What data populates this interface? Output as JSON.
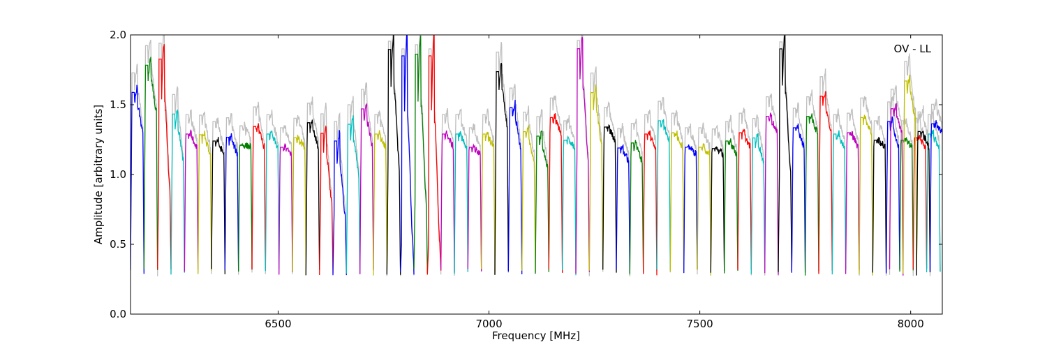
{
  "chart_data": {
    "type": "line",
    "title": "",
    "annotation": "OV - LL",
    "xlabel": "Frequency [MHz]",
    "ylabel": "Amplitude [arbitrary units]",
    "xlim": [
      6150,
      8075
    ],
    "ylim": [
      0.0,
      2.0
    ],
    "x_ticks": [
      6500,
      7000,
      7500,
      8000
    ],
    "x_tick_labels": [
      "6500",
      "7000",
      "7500",
      "8000"
    ],
    "y_ticks": [
      0.0,
      0.5,
      1.0,
      1.5,
      2.0
    ],
    "y_tick_labels": [
      "0.0",
      "0.5",
      "1.0",
      "1.5",
      "2.0"
    ],
    "grid": false,
    "legend": "none",
    "background_series_color": "#bfbfbf",
    "color_cycle": [
      "#0000ff",
      "#008000",
      "#ff0000",
      "#00bfbf",
      "#bf00bf",
      "#bfbf00",
      "#000000"
    ],
    "channel_width_mhz": 32,
    "channels": [
      {
        "start": 6150,
        "color": "#0000ff",
        "level": 1.3,
        "peak": 1.62
      },
      {
        "start": 6182,
        "color": "#008000",
        "level": 1.45,
        "peak": 1.82
      },
      {
        "start": 6214,
        "color": "#ff0000",
        "level": 0.9,
        "peak": 1.93
      },
      {
        "start": 6246,
        "color": "#00bfbf",
        "level": 1.1,
        "peak": 1.47
      },
      {
        "start": 6278,
        "color": "#bf00bf",
        "level": 1.2,
        "peak": 1.3
      },
      {
        "start": 6310,
        "color": "#bfbf00",
        "level": 1.15,
        "peak": 1.3
      },
      {
        "start": 6342,
        "color": "#000000",
        "level": 1.15,
        "peak": 1.25
      },
      {
        "start": 6374,
        "color": "#0000ff",
        "level": 1.15,
        "peak": 1.28
      },
      {
        "start": 6406,
        "color": "#008000",
        "level": 1.2,
        "peak": 1.21
      },
      {
        "start": 6438,
        "color": "#ff0000",
        "level": 1.2,
        "peak": 1.36
      },
      {
        "start": 6470,
        "color": "#00bfbf",
        "level": 1.2,
        "peak": 1.3
      },
      {
        "start": 6502,
        "color": "#bf00bf",
        "level": 1.15,
        "peak": 1.2
      },
      {
        "start": 6534,
        "color": "#bfbf00",
        "level": 1.2,
        "peak": 1.27
      },
      {
        "start": 6566,
        "color": "#000000",
        "level": 1.2,
        "peak": 1.39
      },
      {
        "start": 6598,
        "color": "#ff0000",
        "level": 0.8,
        "peak": 1.35
      },
      {
        "start": 6630,
        "color": "#0000ff",
        "level": 0.7,
        "peak": 1.3
      },
      {
        "start": 6662,
        "color": "#00bfbf",
        "level": 1.0,
        "peak": 1.4
      },
      {
        "start": 6694,
        "color": "#bf00bf",
        "level": 1.2,
        "peak": 1.5
      },
      {
        "start": 6726,
        "color": "#bfbf00",
        "level": 1.2,
        "peak": 1.3
      },
      {
        "start": 6758,
        "color": "#000000",
        "level": 1.05,
        "peak": 1.99
      },
      {
        "start": 6790,
        "color": "#0000ff",
        "level": 0.5,
        "peak": 2.0
      },
      {
        "start": 6822,
        "color": "#008000",
        "level": 0.8,
        "peak": 1.98
      },
      {
        "start": 6854,
        "color": "#ff0000",
        "level": 0.5,
        "peak": 2.0
      },
      {
        "start": 6886,
        "color": "#bf00bf",
        "level": 1.2,
        "peak": 1.3
      },
      {
        "start": 6918,
        "color": "#00bfbf",
        "level": 1.2,
        "peak": 1.3
      },
      {
        "start": 6950,
        "color": "#bf00bf",
        "level": 1.15,
        "peak": 1.2
      },
      {
        "start": 6982,
        "color": "#bfbf00",
        "level": 1.2,
        "peak": 1.3
      },
      {
        "start": 7014,
        "color": "#000000",
        "level": 1.35,
        "peak": 1.78
      },
      {
        "start": 7046,
        "color": "#0000ff",
        "level": 1.2,
        "peak": 1.51
      },
      {
        "start": 7078,
        "color": "#bfbf00",
        "level": 1.1,
        "peak": 1.33
      },
      {
        "start": 7110,
        "color": "#008000",
        "level": 1.05,
        "peak": 1.3
      },
      {
        "start": 7142,
        "color": "#ff0000",
        "level": 1.3,
        "peak": 1.42
      },
      {
        "start": 7174,
        "color": "#00bfbf",
        "level": 1.2,
        "peak": 1.25
      },
      {
        "start": 7206,
        "color": "#bf00bf",
        "level": 1.1,
        "peak": 1.99
      },
      {
        "start": 7238,
        "color": "#bfbf00",
        "level": 1.2,
        "peak": 1.63
      },
      {
        "start": 7270,
        "color": "#000000",
        "level": 1.25,
        "peak": 1.35
      },
      {
        "start": 7302,
        "color": "#0000ff",
        "level": 1.1,
        "peak": 1.2
      },
      {
        "start": 7334,
        "color": "#008000",
        "level": 1.1,
        "peak": 1.24
      },
      {
        "start": 7366,
        "color": "#ff0000",
        "level": 1.2,
        "peak": 1.3
      },
      {
        "start": 7398,
        "color": "#00bfbf",
        "level": 1.25,
        "peak": 1.4
      },
      {
        "start": 7430,
        "color": "#bfbf00",
        "level": 1.2,
        "peak": 1.31
      },
      {
        "start": 7462,
        "color": "#0000ff",
        "level": 1.15,
        "peak": 1.2
      },
      {
        "start": 7494,
        "color": "#bfbf00",
        "level": 1.15,
        "peak": 1.2
      },
      {
        "start": 7526,
        "color": "#000000",
        "level": 1.15,
        "peak": 1.19
      },
      {
        "start": 7558,
        "color": "#008000",
        "level": 1.15,
        "peak": 1.25
      },
      {
        "start": 7590,
        "color": "#ff0000",
        "level": 1.2,
        "peak": 1.31
      },
      {
        "start": 7622,
        "color": "#00bfbf",
        "level": 1.1,
        "peak": 1.28
      },
      {
        "start": 7654,
        "color": "#bf00bf",
        "level": 1.3,
        "peak": 1.43
      },
      {
        "start": 7686,
        "color": "#000000",
        "level": 1.0,
        "peak": 2.0
      },
      {
        "start": 7718,
        "color": "#0000ff",
        "level": 1.2,
        "peak": 1.35
      },
      {
        "start": 7750,
        "color": "#008000",
        "level": 1.3,
        "peak": 1.43
      },
      {
        "start": 7782,
        "color": "#ff0000",
        "level": 1.3,
        "peak": 1.59
      },
      {
        "start": 7814,
        "color": "#00bfbf",
        "level": 1.2,
        "peak": 1.3
      },
      {
        "start": 7846,
        "color": "#bf00bf",
        "level": 1.2,
        "peak": 1.31
      },
      {
        "start": 7878,
        "color": "#bfbf00",
        "level": 1.3,
        "peak": 1.42
      },
      {
        "start": 7910,
        "color": "#000000",
        "level": 1.2,
        "peak": 1.25
      },
      {
        "start": 7942,
        "color": "#0000ff",
        "level": 1.2,
        "peak": 1.4
      },
      {
        "start": 7974,
        "color": "#008000",
        "level": 1.2,
        "peak": 1.25
      },
      {
        "start": 8006,
        "color": "#ff0000",
        "level": 1.2,
        "peak": 1.27
      },
      {
        "start": 8038,
        "color": "#00bfbf",
        "level": 1.2,
        "peak": 1.3
      },
      {
        "start": 7950,
        "color": "#bf00bf",
        "level": 1.3,
        "peak": 1.49
      },
      {
        "start": 7982,
        "color": "#bfbf00",
        "level": 1.4,
        "peak": 1.7
      },
      {
        "start": 8014,
        "color": "#000000",
        "level": 1.2,
        "peak": 1.32
      },
      {
        "start": 8046,
        "color": "#0000ff",
        "level": 1.3,
        "peak": 1.37
      }
    ]
  }
}
